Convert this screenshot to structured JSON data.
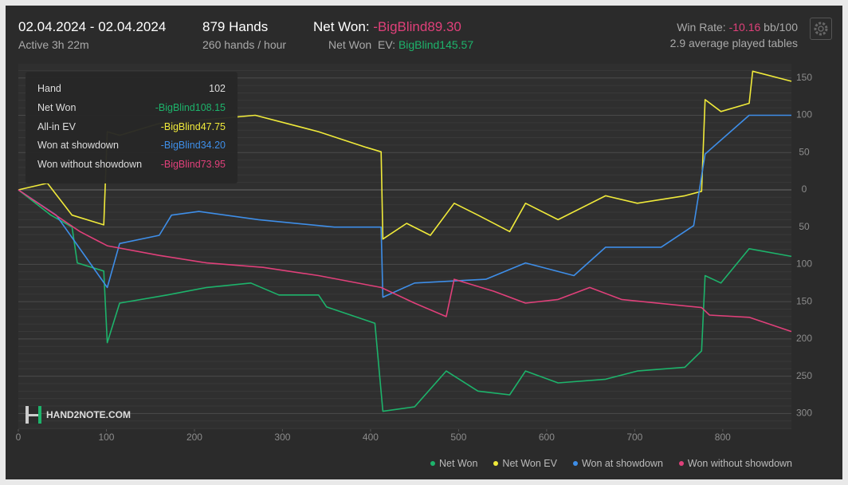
{
  "header": {
    "date_range": "02.04.2024 - 02.04.2024",
    "active": "Active 3h 22m",
    "hands": "879 Hands",
    "rate": "260 hands / hour",
    "net_won_label": "Net Won:",
    "net_won_value": "-BigBlind89.30",
    "net_won_ev_label": "Net Won  EV:",
    "net_won_ev_value": "BigBlind145.57",
    "win_rate_label": "Win Rate:",
    "win_rate_value": "-10.16",
    "win_rate_unit": "bb/100",
    "tables": "2.9 average played tables"
  },
  "tooltip": {
    "title_label": "Hand",
    "title_value": "102",
    "rows": [
      {
        "label": "Net Won",
        "value": "-BigBlind108.15",
        "color": "#1db36b"
      },
      {
        "label": "All-in EV",
        "value": "-BigBlind47.75",
        "color": "#f0ea3a"
      },
      {
        "label": "Won at showdown",
        "value": "-BigBlind34.20",
        "color": "#3e8ee8"
      },
      {
        "label": "Won without showdown",
        "value": "-BigBlind73.95",
        "color": "#e0407a"
      }
    ]
  },
  "logo": "HAND2NOTE.COM",
  "chart_data": {
    "type": "line",
    "xlim": [
      0,
      878
    ],
    "xticks": [
      0,
      100,
      200,
      300,
      400,
      500,
      600,
      700,
      800
    ],
    "ylim": [
      -321,
      169
    ],
    "yticks": [
      150,
      100,
      50,
      0,
      {
        "value": -50,
        "label": "50"
      },
      {
        "value": -100,
        "label": "100"
      },
      {
        "value": -150,
        "label": "150"
      },
      {
        "value": -200,
        "label": "200"
      },
      {
        "value": -250,
        "label": "250"
      },
      {
        "value": -300,
        "label": "300"
      }
    ],
    "grid": true,
    "series": [
      {
        "name": "Net Won",
        "color": "#1db36b",
        "x": [
          0,
          37,
          61,
          67,
          97,
          101,
          115,
          169,
          214,
          264,
          296,
          341,
          350,
          405,
          414,
          450,
          486,
          522,
          558,
          576,
          613,
          667,
          703,
          757,
          776,
          780,
          798,
          830,
          878
        ],
        "values": [
          0,
          -34,
          -50,
          -98,
          -109,
          -205,
          -152,
          -141,
          -131,
          -125,
          -141,
          -141,
          -157,
          -179,
          -297,
          -291,
          -243,
          -270,
          -275,
          -243,
          -259,
          -254,
          -243,
          -238,
          -216,
          -115,
          -125,
          -79,
          -89.3
        ]
      },
      {
        "name": "Net Won  EV",
        "color": "#f0ea3a",
        "x": [
          0,
          33,
          61,
          97,
          101,
          115,
          160,
          214,
          269,
          341,
          395,
          412,
          414,
          441,
          468,
          495,
          522,
          558,
          576,
          613,
          667,
          703,
          757,
          776,
          780,
          798,
          830,
          834,
          878
        ],
        "values": [
          0,
          9,
          -34,
          -47,
          78,
          73,
          89,
          94,
          100,
          78,
          57,
          51,
          -66,
          -45,
          -61,
          -18,
          -34,
          -56,
          -18,
          -40,
          -8,
          -18,
          -8,
          -2,
          121,
          105,
          116,
          159,
          145.57
        ]
      },
      {
        "name": "Won at showdown",
        "color": "#3e8ee8",
        "x": [
          0,
          43,
          101,
          115,
          160,
          174,
          205,
          273,
          359,
          412,
          414,
          450,
          531,
          576,
          631,
          667,
          730,
          767,
          780,
          830,
          878
        ],
        "values": [
          0,
          -34,
          -131,
          -72,
          -61,
          -34,
          -29,
          -40,
          -50,
          -50,
          -144,
          -125,
          -120,
          -98,
          -115,
          -77,
          -77,
          -48,
          48,
          100,
          100
        ]
      },
      {
        "name": "Won without showdown",
        "color": "#e0407a",
        "x": [
          0,
          70,
          101,
          160,
          214,
          278,
          341,
          412,
          450,
          486,
          495,
          540,
          576,
          613,
          649,
          685,
          776,
          785,
          830,
          878
        ],
        "values": [
          0,
          -56,
          -75,
          -88,
          -98,
          -104,
          -115,
          -131,
          -152,
          -170,
          -120,
          -136,
          -152,
          -147,
          -131,
          -147,
          -158,
          -168,
          -171,
          -190
        ]
      }
    ]
  }
}
